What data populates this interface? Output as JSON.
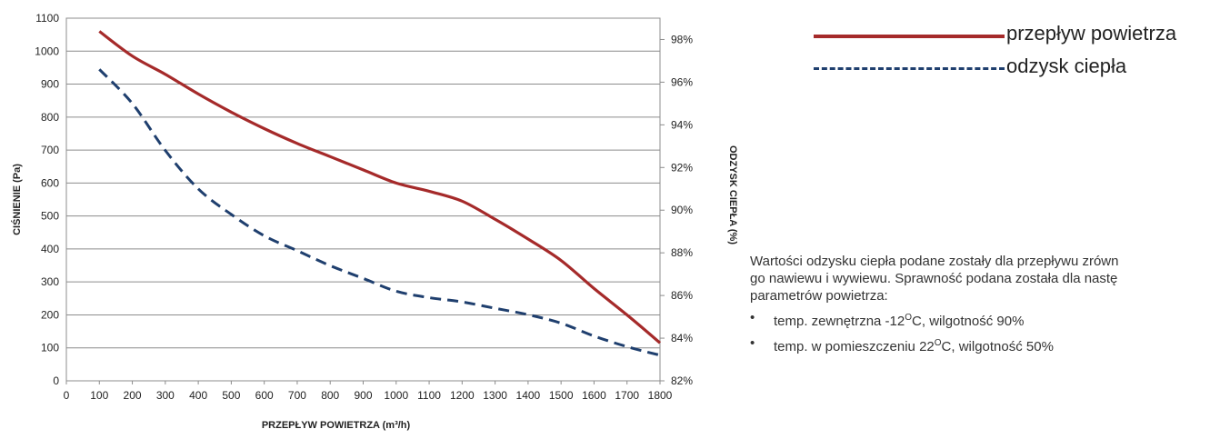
{
  "chart_data": {
    "type": "line",
    "xlabel": "PRZEPŁYW POWIETRZA (m³/h)",
    "ylabel": "CIŚNIENIE (Pa)",
    "y2label": "ODZYSK CIEPŁA (%)",
    "xlim": [
      0,
      1800
    ],
    "ylim": [
      0,
      1100
    ],
    "y2lim": [
      82,
      99
    ],
    "x_ticks": [
      "0",
      "100",
      "200",
      "300",
      "400",
      "500",
      "600",
      "700",
      "800",
      "900",
      "1000",
      "1100",
      "1200",
      "1300",
      "1400",
      "1500",
      "1600",
      "1700",
      "1800"
    ],
    "y_ticks": [
      "0",
      "100",
      "200",
      "300",
      "400",
      "500",
      "600",
      "700",
      "800",
      "900",
      "1000",
      "1100"
    ],
    "y2_ticks": [
      "82%",
      "84%",
      "86%",
      "88%",
      "90%",
      "92%",
      "94%",
      "96%",
      "98%"
    ],
    "grid": true,
    "series": [
      {
        "name": "przepływ powietrza",
        "axis": "left",
        "color": "#a52a2a",
        "style": "solid",
        "x": [
          100,
          200,
          300,
          400,
          500,
          600,
          700,
          800,
          900,
          1000,
          1100,
          1200,
          1300,
          1400,
          1500,
          1600,
          1700,
          1800
        ],
        "y": [
          1060,
          985,
          930,
          870,
          815,
          765,
          720,
          680,
          640,
          600,
          575,
          545,
          490,
          430,
          365,
          280,
          200,
          115
        ]
      },
      {
        "name": "odzysk ciepła",
        "axis": "right",
        "color": "#1f3f6e",
        "style": "dashed",
        "x": [
          100,
          200,
          300,
          400,
          500,
          600,
          700,
          800,
          900,
          1000,
          1100,
          1200,
          1300,
          1400,
          1500,
          1600,
          1700,
          1800
        ],
        "y": [
          96.6,
          95.0,
          92.8,
          91.0,
          89.8,
          88.8,
          88.1,
          87.4,
          86.8,
          86.2,
          85.9,
          85.7,
          85.4,
          85.1,
          84.7,
          84.1,
          83.6,
          83.2
        ]
      }
    ]
  },
  "legend": {
    "items": [
      {
        "label": "przepływ powietrza"
      },
      {
        "label": "odzysk ciepła"
      }
    ]
  },
  "note": {
    "line1": "Wartości odzysku ciepła podane zostały dla przepływu zrówn",
    "line2": "go nawiewu i wywiewu. Sprawność podana została dla nastę",
    "line3": "parametrów powietrza:",
    "bullet1_a": "temp. zewnętrzna -12",
    "bullet1_sup": "O",
    "bullet1_b": "C, wilgotność 90%",
    "bullet2_a": "temp. w pomieszczeniu 22",
    "bullet2_sup": "O",
    "bullet2_b": "C, wilgotność 50%"
  },
  "bullet_char": "•"
}
